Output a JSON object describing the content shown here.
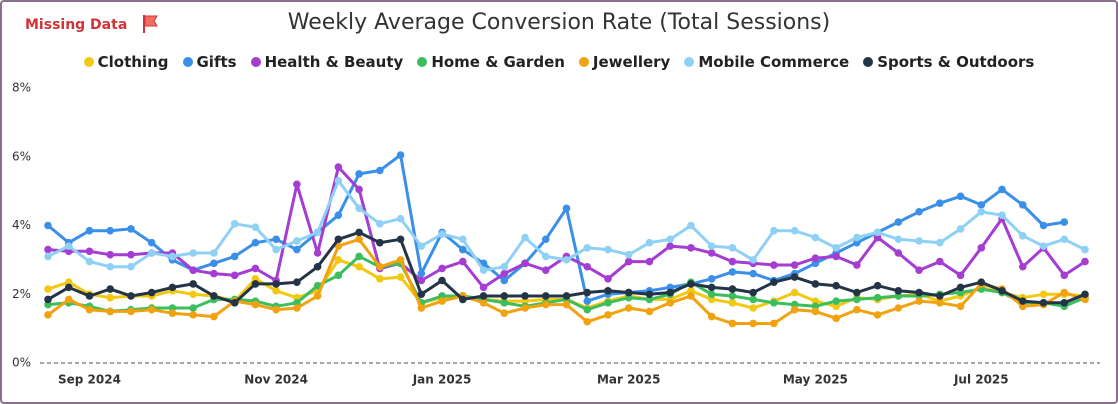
{
  "header": {
    "note": "Missing Data"
  },
  "chart_data": {
    "type": "line",
    "title": "Weekly Average Conversion Rate (Total Sessions)",
    "categories": [
      null,
      null,
      "Sep 2024",
      null,
      null,
      null,
      null,
      null,
      null,
      null,
      null,
      "Nov 2024",
      null,
      null,
      null,
      null,
      null,
      null,
      null,
      "Jan 2025",
      null,
      null,
      null,
      null,
      null,
      null,
      null,
      null,
      "Mar 2025",
      null,
      null,
      null,
      null,
      null,
      null,
      null,
      null,
      "May 2025",
      null,
      null,
      null,
      null,
      null,
      null,
      null,
      "Jul 2025",
      null,
      null,
      null,
      null,
      null
    ],
    "ylim": [
      0,
      8
    ],
    "yticks": [
      {
        "value": 0,
        "label": "0%"
      },
      {
        "value": 2,
        "label": "2%"
      },
      {
        "value": 4,
        "label": "4%"
      },
      {
        "value": 6,
        "label": "6%"
      },
      {
        "value": 8,
        "label": "8%"
      }
    ],
    "grid": false,
    "legend": "top",
    "series": [
      {
        "name": "Clothing",
        "color": "#F2C811",
        "values": [
          2.15,
          2.35,
          2.0,
          1.9,
          1.95,
          1.95,
          2.1,
          2.0,
          1.95,
          1.8,
          2.45,
          2.1,
          1.9,
          2.1,
          3.0,
          2.8,
          2.45,
          2.5,
          1.75,
          1.9,
          1.95,
          1.85,
          1.8,
          1.8,
          1.85,
          1.85,
          1.6,
          1.8,
          1.95,
          1.85,
          1.85,
          2.1,
          1.85,
          1.75,
          1.6,
          1.8,
          2.05,
          1.8,
          1.65,
          1.9,
          1.85,
          1.95,
          2.0,
          1.8,
          1.95,
          2.2,
          2.05,
          1.9,
          2.0,
          2.0,
          1.95
        ]
      },
      {
        "name": "Gifts",
        "color": "#3A8FE8",
        "values": [
          4.0,
          3.5,
          3.85,
          3.85,
          3.9,
          3.5,
          3.0,
          2.7,
          2.9,
          3.1,
          3.5,
          3.6,
          3.3,
          3.8,
          4.3,
          5.5,
          5.6,
          6.05,
          2.6,
          3.8,
          3.3,
          2.9,
          2.4,
          2.9,
          3.6,
          4.5,
          1.8,
          2.0,
          2.05,
          2.1,
          2.2,
          2.3,
          2.45,
          2.65,
          2.6,
          2.4,
          2.6,
          2.9,
          3.2,
          3.5,
          3.8,
          4.1,
          4.4,
          4.65,
          4.85,
          4.6,
          5.05,
          4.6,
          4.0,
          4.1,
          null
        ]
      },
      {
        "name": "Health & Beauty",
        "color": "#A53DD3",
        "values": [
          3.3,
          3.25,
          3.25,
          3.15,
          3.15,
          3.2,
          3.2,
          2.7,
          2.6,
          2.55,
          2.75,
          2.4,
          5.2,
          3.2,
          5.7,
          5.05,
          2.75,
          2.9,
          2.4,
          2.75,
          2.95,
          2.2,
          2.6,
          2.9,
          2.7,
          3.1,
          2.8,
          2.45,
          2.95,
          2.95,
          3.4,
          3.35,
          3.2,
          2.95,
          2.9,
          2.85,
          2.85,
          3.05,
          3.1,
          2.85,
          3.65,
          3.2,
          2.7,
          2.95,
          2.55,
          3.35,
          4.2,
          2.8,
          3.35,
          2.55,
          2.95
        ]
      },
      {
        "name": "Home & Garden",
        "color": "#3DBE5E",
        "values": [
          1.7,
          1.75,
          1.65,
          1.5,
          1.55,
          1.6,
          1.6,
          1.6,
          1.85,
          1.85,
          1.8,
          1.65,
          1.75,
          2.25,
          2.55,
          3.1,
          2.8,
          2.9,
          1.75,
          1.95,
          1.95,
          1.85,
          1.75,
          1.65,
          1.75,
          1.85,
          1.55,
          1.75,
          1.9,
          1.85,
          2.0,
          2.35,
          2.0,
          1.95,
          1.85,
          1.75,
          1.7,
          1.65,
          1.8,
          1.85,
          1.9,
          1.95,
          1.95,
          2.0,
          2.05,
          2.15,
          2.05,
          1.75,
          1.75,
          1.65,
          1.9
        ]
      },
      {
        "name": "Jewellery",
        "color": "#F2A20F",
        "values": [
          1.4,
          1.85,
          1.55,
          1.5,
          1.5,
          1.55,
          1.45,
          1.4,
          1.35,
          1.8,
          1.7,
          1.55,
          1.6,
          1.95,
          3.4,
          3.6,
          2.8,
          3.0,
          1.6,
          1.8,
          1.95,
          1.75,
          1.45,
          1.6,
          1.7,
          1.7,
          1.2,
          1.4,
          1.6,
          1.5,
          1.75,
          1.95,
          1.35,
          1.15,
          1.15,
          1.15,
          1.55,
          1.5,
          1.3,
          1.55,
          1.4,
          1.6,
          1.8,
          1.75,
          1.65,
          2.3,
          2.15,
          1.65,
          1.7,
          2.05,
          1.85
        ]
      },
      {
        "name": "Mobile Commerce",
        "color": "#8FD0F5",
        "values": [
          3.1,
          3.4,
          2.95,
          2.8,
          2.8,
          3.2,
          3.1,
          3.2,
          3.2,
          4.05,
          3.95,
          3.3,
          3.55,
          3.8,
          5.3,
          4.5,
          4.05,
          4.2,
          3.4,
          3.75,
          3.6,
          2.7,
          2.8,
          3.65,
          3.1,
          3.0,
          3.35,
          3.3,
          3.15,
          3.5,
          3.6,
          4.0,
          3.4,
          3.35,
          3.0,
          3.85,
          3.85,
          3.65,
          3.35,
          3.65,
          3.8,
          3.6,
          3.55,
          3.5,
          3.9,
          4.4,
          4.3,
          3.7,
          3.4,
          3.6,
          3.3
        ]
      },
      {
        "name": "Sports & Outdoors",
        "color": "#243447",
        "values": [
          1.85,
          2.2,
          1.95,
          2.15,
          1.95,
          2.05,
          2.2,
          2.3,
          1.95,
          1.75,
          2.3,
          2.3,
          2.35,
          2.8,
          3.6,
          3.8,
          3.5,
          3.6,
          2.0,
          2.4,
          1.85,
          1.95,
          1.95,
          1.95,
          1.95,
          1.95,
          2.05,
          2.1,
          2.05,
          2.0,
          2.05,
          2.3,
          2.2,
          2.15,
          2.05,
          2.35,
          2.5,
          2.3,
          2.25,
          2.05,
          2.25,
          2.1,
          2.05,
          1.95,
          2.2,
          2.35,
          2.1,
          1.8,
          1.75,
          1.75,
          2.0
        ]
      }
    ]
  }
}
